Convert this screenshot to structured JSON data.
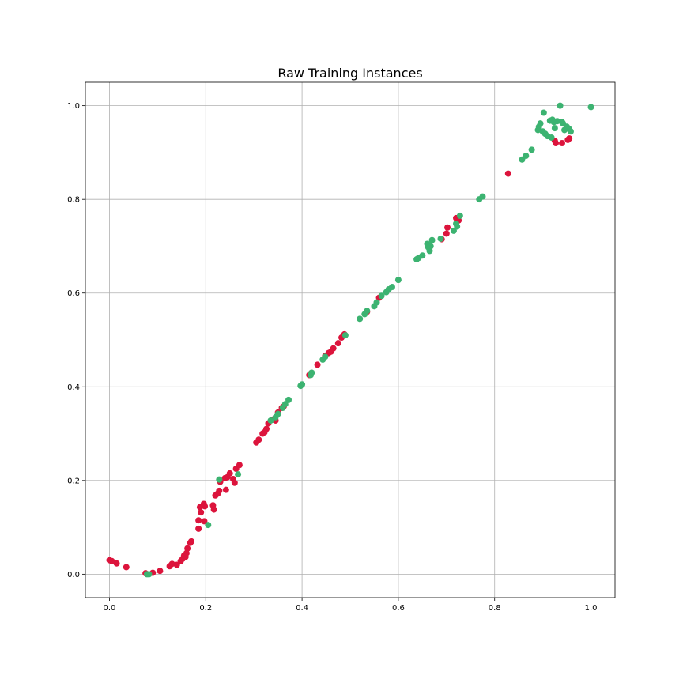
{
  "chart_data": {
    "type": "scatter",
    "title": "Raw Training Instances",
    "xlabel": "",
    "ylabel": "",
    "xlim": [
      -0.05,
      1.05
    ],
    "ylim": [
      -0.05,
      1.05
    ],
    "xticks": [
      "0.0",
      "0.2",
      "0.4",
      "0.6",
      "0.8",
      "1.0"
    ],
    "yticks": [
      "0.0",
      "0.2",
      "0.4",
      "0.6",
      "0.8",
      "1.0"
    ],
    "grid": true,
    "legend": "none",
    "colors": {
      "red": "#dc143c",
      "green": "#3cb371"
    },
    "series": [
      {
        "color": "#dc143c",
        "points": [
          [
            0.0,
            0.03
          ],
          [
            0.005,
            0.028
          ],
          [
            0.015,
            0.023
          ],
          [
            0.035,
            0.015
          ],
          [
            0.075,
            0.002
          ],
          [
            0.09,
            0.003
          ],
          [
            0.105,
            0.007
          ],
          [
            0.125,
            0.017
          ],
          [
            0.13,
            0.022
          ],
          [
            0.14,
            0.02
          ],
          [
            0.148,
            0.028
          ],
          [
            0.152,
            0.033
          ],
          [
            0.155,
            0.04
          ],
          [
            0.158,
            0.037
          ],
          [
            0.16,
            0.045
          ],
          [
            0.162,
            0.055
          ],
          [
            0.168,
            0.067
          ],
          [
            0.17,
            0.07
          ],
          [
            0.185,
            0.097
          ],
          [
            0.185,
            0.115
          ],
          [
            0.19,
            0.132
          ],
          [
            0.188,
            0.143
          ],
          [
            0.196,
            0.15
          ],
          [
            0.198,
            0.145
          ],
          [
            0.197,
            0.113
          ],
          [
            0.215,
            0.147
          ],
          [
            0.217,
            0.138
          ],
          [
            0.22,
            0.168
          ],
          [
            0.225,
            0.172
          ],
          [
            0.228,
            0.178
          ],
          [
            0.23,
            0.197
          ],
          [
            0.24,
            0.205
          ],
          [
            0.242,
            0.18
          ],
          [
            0.245,
            0.207
          ],
          [
            0.25,
            0.215
          ],
          [
            0.257,
            0.203
          ],
          [
            0.26,
            0.195
          ],
          [
            0.263,
            0.225
          ],
          [
            0.27,
            0.233
          ],
          [
            0.305,
            0.281
          ],
          [
            0.31,
            0.287
          ],
          [
            0.318,
            0.3
          ],
          [
            0.322,
            0.303
          ],
          [
            0.326,
            0.31
          ],
          [
            0.33,
            0.322
          ],
          [
            0.34,
            0.33
          ],
          [
            0.345,
            0.328
          ],
          [
            0.35,
            0.345
          ],
          [
            0.358,
            0.355
          ],
          [
            0.362,
            0.358
          ],
          [
            0.415,
            0.425
          ],
          [
            0.418,
            0.428
          ],
          [
            0.432,
            0.447
          ],
          [
            0.448,
            0.466
          ],
          [
            0.455,
            0.472
          ],
          [
            0.46,
            0.475
          ],
          [
            0.465,
            0.482
          ],
          [
            0.475,
            0.493
          ],
          [
            0.482,
            0.505
          ],
          [
            0.488,
            0.512
          ],
          [
            0.535,
            0.56
          ],
          [
            0.56,
            0.59
          ],
          [
            0.69,
            0.715
          ],
          [
            0.7,
            0.727
          ],
          [
            0.702,
            0.74
          ],
          [
            0.72,
            0.76
          ],
          [
            0.725,
            0.755
          ],
          [
            0.828,
            0.855
          ],
          [
            0.925,
            0.925
          ],
          [
            0.927,
            0.92
          ],
          [
            0.94,
            0.92
          ],
          [
            0.952,
            0.927
          ],
          [
            0.955,
            0.93
          ]
        ]
      },
      {
        "color": "#3cb371",
        "points": [
          [
            0.078,
            0.0
          ],
          [
            0.082,
            0.0
          ],
          [
            0.205,
            0.105
          ],
          [
            0.228,
            0.202
          ],
          [
            0.267,
            0.213
          ],
          [
            0.335,
            0.328
          ],
          [
            0.345,
            0.335
          ],
          [
            0.35,
            0.342
          ],
          [
            0.36,
            0.355
          ],
          [
            0.365,
            0.363
          ],
          [
            0.372,
            0.372
          ],
          [
            0.397,
            0.402
          ],
          [
            0.4,
            0.405
          ],
          [
            0.418,
            0.425
          ],
          [
            0.42,
            0.43
          ],
          [
            0.443,
            0.458
          ],
          [
            0.448,
            0.464
          ],
          [
            0.49,
            0.51
          ],
          [
            0.52,
            0.545
          ],
          [
            0.53,
            0.555
          ],
          [
            0.535,
            0.562
          ],
          [
            0.55,
            0.572
          ],
          [
            0.555,
            0.58
          ],
          [
            0.565,
            0.594
          ],
          [
            0.575,
            0.602
          ],
          [
            0.58,
            0.608
          ],
          [
            0.587,
            0.613
          ],
          [
            0.6,
            0.628
          ],
          [
            0.638,
            0.672
          ],
          [
            0.642,
            0.675
          ],
          [
            0.65,
            0.68
          ],
          [
            0.66,
            0.705
          ],
          [
            0.662,
            0.698
          ],
          [
            0.665,
            0.69
          ],
          [
            0.667,
            0.7
          ],
          [
            0.67,
            0.713
          ],
          [
            0.688,
            0.716
          ],
          [
            0.715,
            0.733
          ],
          [
            0.72,
            0.748
          ],
          [
            0.722,
            0.742
          ],
          [
            0.728,
            0.765
          ],
          [
            0.768,
            0.8
          ],
          [
            0.775,
            0.806
          ],
          [
            0.857,
            0.885
          ],
          [
            0.865,
            0.893
          ],
          [
            0.877,
            0.906
          ],
          [
            0.89,
            0.948
          ],
          [
            0.892,
            0.955
          ],
          [
            0.895,
            0.962
          ],
          [
            0.9,
            0.945
          ],
          [
            0.902,
            0.985
          ],
          [
            0.905,
            0.94
          ],
          [
            0.91,
            0.935
          ],
          [
            0.915,
            0.968
          ],
          [
            0.918,
            0.932
          ],
          [
            0.92,
            0.97
          ],
          [
            0.923,
            0.965
          ],
          [
            0.925,
            0.952
          ],
          [
            0.93,
            0.967
          ],
          [
            0.936,
            1.0
          ],
          [
            0.94,
            0.965
          ],
          [
            0.942,
            0.962
          ],
          [
            0.945,
            0.948
          ],
          [
            0.95,
            0.955
          ],
          [
            0.955,
            0.95
          ],
          [
            0.958,
            0.945
          ],
          [
            1.0,
            0.997
          ]
        ]
      }
    ]
  }
}
